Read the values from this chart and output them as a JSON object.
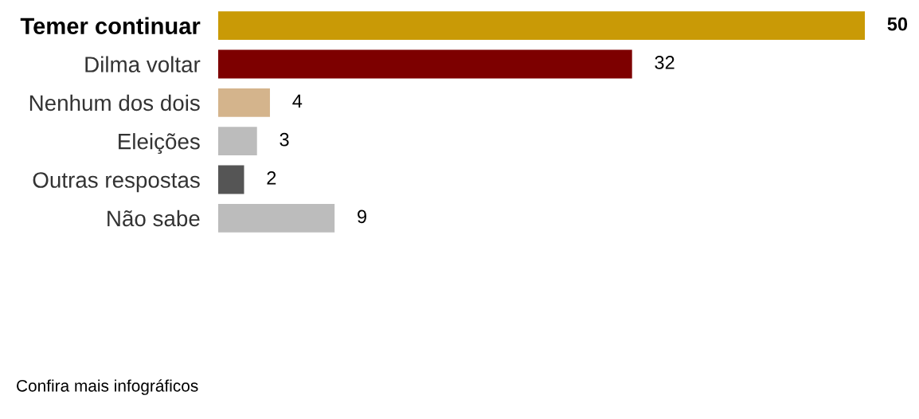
{
  "chart_data": {
    "type": "bar",
    "orientation": "horizontal",
    "categories": [
      "Temer continuar",
      "Dilma voltar",
      "Nenhum dos dois",
      "Eleições",
      "Outras respostas",
      "Não sabe"
    ],
    "values": [
      50,
      32,
      4,
      3,
      2,
      9
    ],
    "colors": [
      "#c99a06",
      "#7d0000",
      "#d4b48c",
      "#bcbcbc",
      "#555555",
      "#bcbcbc"
    ],
    "data_labels": true,
    "grid": false,
    "legend": false,
    "annotations": [
      "Confira mais infográficos"
    ]
  }
}
